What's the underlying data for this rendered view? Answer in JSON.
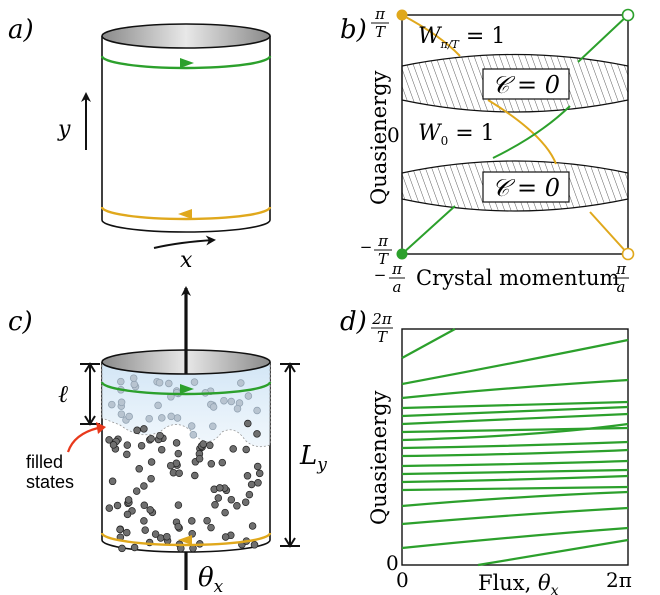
{
  "colors": {
    "green": "#2ca02c",
    "gold": "#e0a81c",
    "blue_fill": "#cfe4f5",
    "dot": "#777777"
  },
  "panel_a": {
    "label": "a)",
    "y_label": "y",
    "x_label": "x"
  },
  "panel_b": {
    "label": "b)",
    "y_top": "π/T",
    "y_bottom": "−π/T",
    "y_mid": "0",
    "ylabel": "Quasienergy",
    "x_left": "−π/a",
    "x_right": "π/a",
    "xlabel": "Crystal momentum",
    "winding_top": "W_{π/T} = 1",
    "winding_mid": "W₀ = 1",
    "chern_upper": "𝒞 = 0",
    "chern_lower": "𝒞 = 0"
  },
  "panel_c": {
    "label": "c)",
    "ell": "ℓ",
    "filled": [
      "filled",
      "states"
    ],
    "Ly": "L_y",
    "theta": "θ_x"
  },
  "panel_d": {
    "label": "d)",
    "y_top": "2π/T",
    "y_bottom": "0",
    "ylabel": "Quasienergy",
    "x_left": "0",
    "x_right": "2π",
    "xlabel": "Flux, θ_x"
  }
}
